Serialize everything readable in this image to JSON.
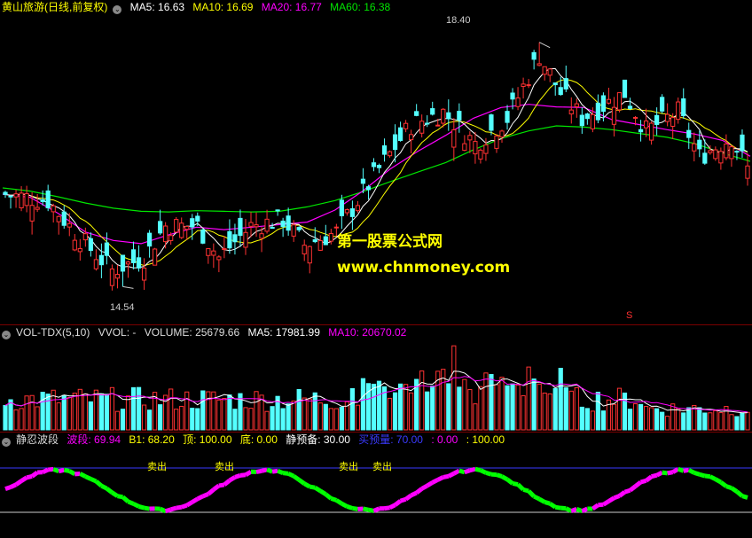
{
  "price_header": {
    "title": "黄山旅游(日线,前复权)",
    "ma5": "MA5: 16.63",
    "ma10": "MA10: 16.69",
    "ma20": "MA20: 16.77",
    "ma60": "MA60: 16.38"
  },
  "price_annotations": {
    "high": "18.40",
    "low": "14.54",
    "marker": "S"
  },
  "watermark": {
    "line1": "第一股票公式网",
    "line2": "www.chnmoney.com"
  },
  "vol_header": {
    "title": "VOL-TDX(5,10)",
    "vvol": "VVOL: -",
    "volume": "VOLUME: 25679.66",
    "ma5": "MA5: 17981.99",
    "ma10": "MA10: 20670.02"
  },
  "ind_header": {
    "title": "静忍波段",
    "bodu": "波段: 69.94",
    "b1": "B1: 68.20",
    "ding": "顶: 100.00",
    "di": "底: 0.00",
    "jingyubei": "静预备: 30.00",
    "maiyuliang": "买预量: 70.00",
    "v1": ": 0.00",
    "v2": ": 100.00"
  },
  "ind_labels": [
    "卖出",
    "卖出",
    "卖出",
    "卖出"
  ],
  "colors": {
    "up": "#ff3232",
    "down": "#54ffff",
    "ma5": "#ffffff",
    "ma10": "#ffff00",
    "ma20": "#ff00ff",
    "ma60": "#00e600",
    "wave_up": "#ff00ff",
    "wave_down": "#00ff00"
  },
  "chart_data": {
    "type": "candlestick",
    "price_range": [
      14.0,
      18.9
    ],
    "price_high": 18.4,
    "price_low": 14.54,
    "ma60": [
      16.1,
      16.05,
      15.96,
      15.86,
      15.78,
      15.73,
      15.72,
      15.74,
      15.73,
      15.72,
      15.73,
      15.8,
      15.9,
      16.04,
      16.2,
      16.35,
      16.5,
      16.7,
      16.88,
      17.0,
      17.08,
      17.06,
      17.02,
      16.96,
      16.9,
      16.8,
      16.65,
      16.52
    ],
    "ma20": [
      16.0,
      15.95,
      15.7,
      15.4,
      15.27,
      15.22,
      15.36,
      15.48,
      15.44,
      15.48,
      15.52,
      15.56,
      15.75,
      16.05,
      16.4,
      16.68,
      16.93,
      17.2,
      17.37,
      17.42,
      17.38,
      17.37,
      17.18,
      17.1,
      17.02,
      16.95,
      16.85,
      16.6
    ],
    "volume_range": [
      0,
      58000
    ],
    "indicator_levels": {
      "top": 100.0,
      "bottom": 0.0,
      "upper": 70.0,
      "lower": 30.0
    }
  }
}
